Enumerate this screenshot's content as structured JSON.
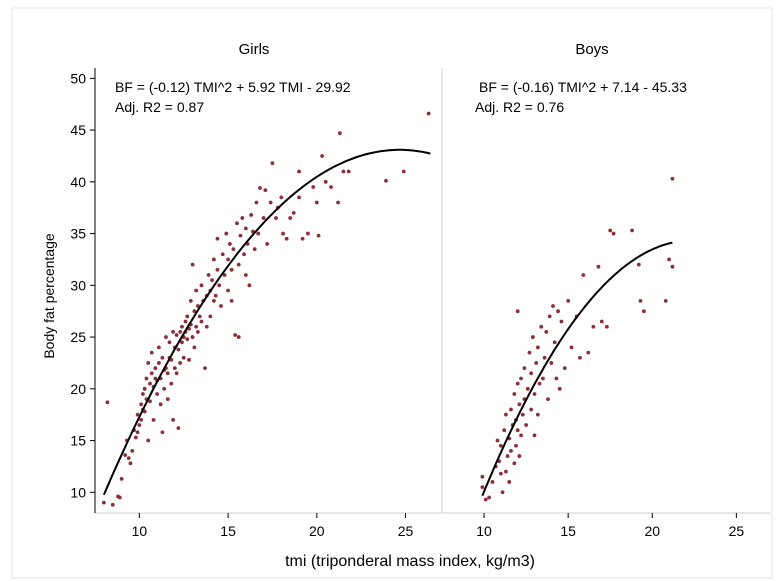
{
  "figure": {
    "xlabel": "tmi (triponderal mass index, kg/m3)",
    "ylabel": "Body fat percentage"
  },
  "chart_data": [
    {
      "type": "scatter",
      "title": "Girls",
      "xlabel": "tmi (triponderal mass index, kg/m3)",
      "ylabel": "Body fat percentage",
      "xlim": [
        7.5,
        27
      ],
      "ylim": [
        8,
        51
      ],
      "xticks": [
        10,
        15,
        20,
        25
      ],
      "yticks": [
        10,
        15,
        20,
        25,
        30,
        35,
        40,
        45,
        50
      ],
      "grid": false,
      "point_color": "#8b2f3a",
      "annotation": [
        "BF = (-0.12) TMI^2 + 5.92 TMI - 29.92",
        "Adj. R2 = 0.87"
      ],
      "fit": {
        "type": "quadratic",
        "a": -0.12,
        "b": 5.92,
        "c": -29.92,
        "x_range": [
          8.0,
          26.4
        ]
      },
      "points": [
        [
          8.0,
          9.0
        ],
        [
          8.2,
          18.7
        ],
        [
          8.5,
          8.8
        ],
        [
          8.8,
          9.6
        ],
        [
          8.9,
          9.5
        ],
        [
          9.0,
          11.3
        ],
        [
          9.2,
          13.6
        ],
        [
          9.3,
          15.0
        ],
        [
          9.4,
          13.3
        ],
        [
          9.5,
          12.8
        ],
        [
          9.6,
          14.0
        ],
        [
          9.7,
          16.0
        ],
        [
          9.8,
          15.3
        ],
        [
          9.9,
          15.8
        ],
        [
          9.9,
          17.5
        ],
        [
          10.0,
          16.5
        ],
        [
          10.1,
          17.0
        ],
        [
          10.1,
          18.5
        ],
        [
          10.2,
          19.5
        ],
        [
          10.2,
          18.0
        ],
        [
          10.3,
          20.0
        ],
        [
          10.3,
          17.8
        ],
        [
          10.4,
          21.0
        ],
        [
          10.4,
          19.0
        ],
        [
          10.5,
          15.0
        ],
        [
          10.5,
          22.5
        ],
        [
          10.6,
          20.5
        ],
        [
          10.6,
          18.8
        ],
        [
          10.7,
          21.5
        ],
        [
          10.7,
          23.5
        ],
        [
          10.8,
          20.2
        ],
        [
          10.8,
          17.0
        ],
        [
          10.9,
          22.0
        ],
        [
          10.9,
          21.0
        ],
        [
          11.0,
          20.8
        ],
        [
          11.0,
          19.5
        ],
        [
          11.1,
          24.0
        ],
        [
          11.1,
          22.5
        ],
        [
          11.2,
          21.0
        ],
        [
          11.2,
          18.5
        ],
        [
          11.3,
          15.8
        ],
        [
          11.3,
          23.0
        ],
        [
          11.4,
          21.8
        ],
        [
          11.4,
          20.0
        ],
        [
          11.5,
          25.0
        ],
        [
          11.5,
          22.0
        ],
        [
          11.6,
          21.5
        ],
        [
          11.6,
          19.0
        ],
        [
          11.7,
          24.5
        ],
        [
          11.7,
          23.0
        ],
        [
          11.8,
          22.8
        ],
        [
          11.8,
          20.5
        ],
        [
          11.9,
          25.5
        ],
        [
          11.9,
          17.0
        ],
        [
          12.0,
          22.0
        ],
        [
          12.0,
          24.0
        ],
        [
          12.1,
          25.2
        ],
        [
          12.1,
          21.5
        ],
        [
          12.2,
          16.2
        ],
        [
          12.2,
          23.8
        ],
        [
          12.3,
          25.5
        ],
        [
          12.3,
          22.5
        ],
        [
          12.4,
          26.0
        ],
        [
          12.4,
          24.5
        ],
        [
          12.5,
          25.0
        ],
        [
          12.5,
          23.0
        ],
        [
          12.6,
          26.5
        ],
        [
          12.6,
          25.5
        ],
        [
          12.7,
          24.8
        ],
        [
          12.7,
          27.0
        ],
        [
          12.8,
          25.8
        ],
        [
          12.8,
          22.8
        ],
        [
          12.9,
          26.2
        ],
        [
          12.9,
          28.5
        ],
        [
          13.0,
          25.0
        ],
        [
          13.0,
          32.0
        ],
        [
          13.1,
          27.5
        ],
        [
          13.1,
          24.0
        ],
        [
          13.2,
          26.0
        ],
        [
          13.2,
          29.5
        ],
        [
          13.3,
          28.0
        ],
        [
          13.3,
          25.5
        ],
        [
          13.4,
          27.0
        ],
        [
          13.5,
          30.0
        ],
        [
          13.5,
          26.5
        ],
        [
          13.6,
          28.5
        ],
        [
          13.7,
          22.0
        ],
        [
          13.8,
          29.0
        ],
        [
          13.8,
          26.0
        ],
        [
          13.9,
          31.0
        ],
        [
          14.0,
          29.5
        ],
        [
          14.0,
          27.0
        ],
        [
          14.1,
          30.5
        ],
        [
          14.2,
          28.5
        ],
        [
          14.2,
          32.5
        ],
        [
          14.3,
          29.0
        ],
        [
          14.4,
          31.5
        ],
        [
          14.4,
          34.5
        ],
        [
          14.5,
          30.0
        ],
        [
          14.6,
          28.0
        ],
        [
          14.7,
          33.0
        ],
        [
          14.8,
          31.0
        ],
        [
          14.9,
          35.0
        ],
        [
          15.0,
          32.5
        ],
        [
          15.0,
          29.5
        ],
        [
          15.1,
          34.0
        ],
        [
          15.2,
          31.5
        ],
        [
          15.2,
          28.5
        ],
        [
          15.3,
          33.5
        ],
        [
          15.4,
          25.2
        ],
        [
          15.5,
          36.0
        ],
        [
          15.6,
          25.0
        ],
        [
          15.6,
          32.0
        ],
        [
          15.7,
          34.8
        ],
        [
          15.8,
          36.5
        ],
        [
          15.9,
          33.0
        ],
        [
          16.0,
          35.5
        ],
        [
          16.0,
          31.0
        ],
        [
          16.1,
          34.0
        ],
        [
          16.2,
          30.0
        ],
        [
          16.3,
          36.8
        ],
        [
          16.4,
          35.2
        ],
        [
          16.5,
          33.5
        ],
        [
          16.6,
          38.0
        ],
        [
          16.7,
          35.0
        ],
        [
          16.8,
          39.4
        ],
        [
          17.0,
          36.5
        ],
        [
          17.1,
          39.2
        ],
        [
          17.2,
          34.0
        ],
        [
          17.4,
          38.0
        ],
        [
          17.5,
          41.8
        ],
        [
          17.7,
          36.5
        ],
        [
          17.8,
          37.5
        ],
        [
          18.0,
          38.5
        ],
        [
          18.1,
          35.0
        ],
        [
          18.3,
          34.5
        ],
        [
          18.5,
          36.5
        ],
        [
          18.7,
          37.0
        ],
        [
          19.0,
          38.5
        ],
        [
          19.0,
          41.0
        ],
        [
          19.2,
          34.5
        ],
        [
          19.5,
          35.0
        ],
        [
          19.8,
          39.5
        ],
        [
          20.0,
          38.0
        ],
        [
          20.1,
          34.8
        ],
        [
          20.3,
          42.5
        ],
        [
          20.5,
          40.0
        ],
        [
          20.8,
          39.5
        ],
        [
          21.2,
          38.0
        ],
        [
          21.3,
          44.7
        ],
        [
          21.5,
          41.0
        ],
        [
          21.8,
          41.0
        ],
        [
          23.9,
          40.1
        ],
        [
          24.9,
          41.0
        ],
        [
          26.3,
          46.6
        ]
      ]
    },
    {
      "type": "scatter",
      "title": "Boys",
      "xlabel": "tmi (triponderal mass index, kg/m3)",
      "ylabel": "Body fat percentage",
      "xlim": [
        7.5,
        27
      ],
      "ylim": [
        8,
        51
      ],
      "xticks": [
        10,
        15,
        20,
        25
      ],
      "yticks": [
        10,
        15,
        20,
        25,
        30,
        35,
        40,
        45,
        50
      ],
      "grid": false,
      "point_color": "#8b2f3a",
      "annotation": [
        "BF = (-0.16) TMI^2 + 7.14 - 45.33",
        "Adj. R2 = 0.76"
      ],
      "fit": {
        "type": "quadratic",
        "a": -0.16,
        "b": 7.14,
        "c": -45.33,
        "x_range": [
          9.9,
          21.2
        ]
      },
      "points": [
        [
          9.9,
          11.5
        ],
        [
          9.9,
          10.5
        ],
        [
          10.1,
          9.3
        ],
        [
          10.3,
          9.5
        ],
        [
          10.5,
          11.0
        ],
        [
          10.7,
          12.5
        ],
        [
          10.8,
          15.0
        ],
        [
          10.9,
          13.0
        ],
        [
          11.0,
          11.8
        ],
        [
          11.0,
          14.5
        ],
        [
          11.1,
          10.0
        ],
        [
          11.2,
          16.0
        ],
        [
          11.3,
          12.0
        ],
        [
          11.3,
          17.5
        ],
        [
          11.4,
          13.5
        ],
        [
          11.5,
          15.2
        ],
        [
          11.5,
          11.0
        ],
        [
          11.6,
          18.0
        ],
        [
          11.6,
          14.0
        ],
        [
          11.7,
          16.5
        ],
        [
          11.8,
          12.8
        ],
        [
          11.8,
          19.5
        ],
        [
          11.9,
          17.0
        ],
        [
          11.9,
          14.5
        ],
        [
          12.0,
          20.5
        ],
        [
          12.0,
          16.0
        ],
        [
          12.0,
          27.5
        ],
        [
          12.1,
          18.5
        ],
        [
          12.1,
          13.5
        ],
        [
          12.2,
          15.5
        ],
        [
          12.2,
          21.0
        ],
        [
          12.3,
          17.5
        ],
        [
          12.4,
          22.0
        ],
        [
          12.4,
          19.0
        ],
        [
          12.5,
          16.5
        ],
        [
          12.6,
          20.0
        ],
        [
          12.7,
          23.5
        ],
        [
          12.8,
          18.0
        ],
        [
          12.8,
          21.5
        ],
        [
          12.9,
          25.0
        ],
        [
          13.0,
          19.5
        ],
        [
          13.0,
          15.5
        ],
        [
          13.1,
          22.5
        ],
        [
          13.2,
          24.0
        ],
        [
          13.2,
          17.5
        ],
        [
          13.3,
          20.5
        ],
        [
          13.4,
          26.0
        ],
        [
          13.5,
          21.0
        ],
        [
          13.6,
          23.0
        ],
        [
          13.7,
          25.5
        ],
        [
          13.8,
          19.0
        ],
        [
          13.9,
          27.0
        ],
        [
          14.0,
          22.5
        ],
        [
          14.1,
          28.0
        ],
        [
          14.2,
          24.5
        ],
        [
          14.3,
          21.0
        ],
        [
          14.4,
          27.5
        ],
        [
          14.5,
          20.0
        ],
        [
          14.6,
          26.5
        ],
        [
          14.8,
          22.0
        ],
        [
          15.0,
          28.5
        ],
        [
          15.2,
          24.0
        ],
        [
          15.5,
          27.0
        ],
        [
          15.7,
          23.0
        ],
        [
          15.9,
          31.0
        ],
        [
          16.2,
          23.5
        ],
        [
          16.5,
          26.0
        ],
        [
          16.8,
          31.8
        ],
        [
          17.0,
          26.5
        ],
        [
          17.3,
          26.0
        ],
        [
          17.5,
          35.3
        ],
        [
          17.7,
          35.0
        ],
        [
          18.8,
          35.3
        ],
        [
          19.2,
          32.0
        ],
        [
          19.3,
          28.5
        ],
        [
          19.5,
          27.5
        ],
        [
          20.8,
          28.5
        ],
        [
          21.0,
          32.5
        ],
        [
          21.2,
          31.8
        ],
        [
          21.2,
          40.3
        ]
      ]
    }
  ]
}
